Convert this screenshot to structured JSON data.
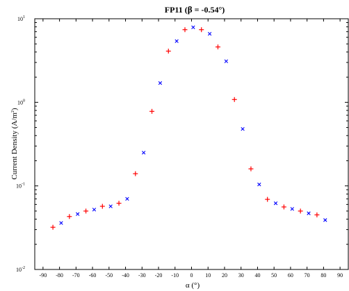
{
  "chart_data": {
    "type": "scatter",
    "title_prefix": "FP11 (",
    "title_beta": "β",
    "title_suffix": " = -0.54°)",
    "xlabel": "α (°)",
    "ylabel_main": "Current Density (A/m",
    "ylabel_sup": "2",
    "ylabel_close": ")",
    "x_scale": "linear",
    "y_scale": "log",
    "xlim": [
      -95,
      95
    ],
    "ylim": [
      0.01,
      10
    ],
    "x_ticks": [
      -90,
      -80,
      -70,
      -60,
      -50,
      -40,
      -30,
      -20,
      -10,
      0,
      10,
      20,
      30,
      40,
      50,
      60,
      70,
      80,
      90
    ],
    "x_tick_labels": [
      "-90",
      "-80",
      "-70",
      "-60",
      "-50",
      "-40",
      "-30",
      "-20",
      "-10",
      "0",
      "10",
      "20",
      "30",
      "40",
      "50",
      "60",
      "70",
      "80",
      "90"
    ],
    "y_ticks": [
      {
        "value": 0.01,
        "base": "10",
        "exp": "-2"
      },
      {
        "value": 0.1,
        "base": "10",
        "exp": "-1"
      },
      {
        "value": 1,
        "base": "10",
        "exp": "0"
      },
      {
        "value": 10,
        "base": "10",
        "exp": "1"
      }
    ],
    "grid": false,
    "series": [
      {
        "marker": "plus",
        "color": "#ff0000",
        "points": [
          [
            -84,
            0.032
          ],
          [
            -74,
            0.043
          ],
          [
            -64,
            0.05
          ],
          [
            -54,
            0.057
          ],
          [
            -44,
            0.062
          ],
          [
            -34,
            0.14
          ],
          [
            -24,
            0.78
          ],
          [
            -14,
            4.1
          ],
          [
            -4,
            7.4
          ],
          [
            6,
            7.4
          ],
          [
            16,
            4.6
          ],
          [
            26,
            1.08
          ],
          [
            36,
            0.16
          ],
          [
            46,
            0.069
          ],
          [
            56,
            0.056
          ],
          [
            66,
            0.05
          ],
          [
            76,
            0.045
          ]
        ]
      },
      {
        "marker": "cross",
        "color": "#0000ff",
        "points": [
          [
            -79,
            0.036
          ],
          [
            -69,
            0.046
          ],
          [
            -59,
            0.052
          ],
          [
            -49,
            0.057
          ],
          [
            -39,
            0.07
          ],
          [
            -29,
            0.25
          ],
          [
            -19,
            1.7
          ],
          [
            -9,
            5.4
          ],
          [
            1,
            7.9
          ],
          [
            11,
            6.6
          ],
          [
            21,
            3.1
          ],
          [
            31,
            0.48
          ],
          [
            41,
            0.104
          ],
          [
            51,
            0.062
          ],
          [
            61,
            0.053
          ],
          [
            71,
            0.047
          ],
          [
            81,
            0.039
          ]
        ]
      }
    ]
  }
}
